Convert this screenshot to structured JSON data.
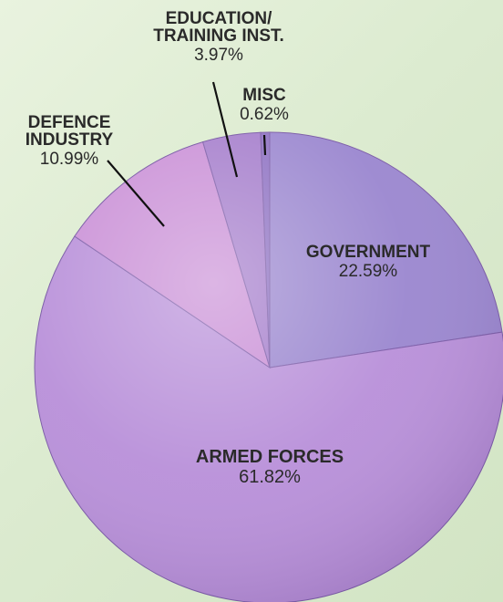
{
  "chart_data": {
    "type": "pie",
    "slices": [
      {
        "name_lines": [
          "GOVERNMENT"
        ],
        "value": 22.59,
        "value_label": "22.59%",
        "color": "#9a86cf"
      },
      {
        "name_lines": [
          "ARMED FORCES"
        ],
        "value": 61.82,
        "value_label": "61.82%",
        "color": "#b88fd9"
      },
      {
        "name_lines": [
          "DEFENCE",
          "INDUSTRY"
        ],
        "value": 10.99,
        "value_label": "10.99%",
        "color": "#c98ed6"
      },
      {
        "name_lines": [
          "EDUCATION/",
          "TRAINING INST."
        ],
        "value": 3.97,
        "value_label": "3.97%",
        "color": "#a47ccb"
      },
      {
        "name_lines": [
          "MISC"
        ],
        "value": 0.62,
        "value_label": "0.62%",
        "color": "#8d70c2"
      }
    ],
    "start": "12 o'clock",
    "direction": "clockwise",
    "legend": "none"
  }
}
